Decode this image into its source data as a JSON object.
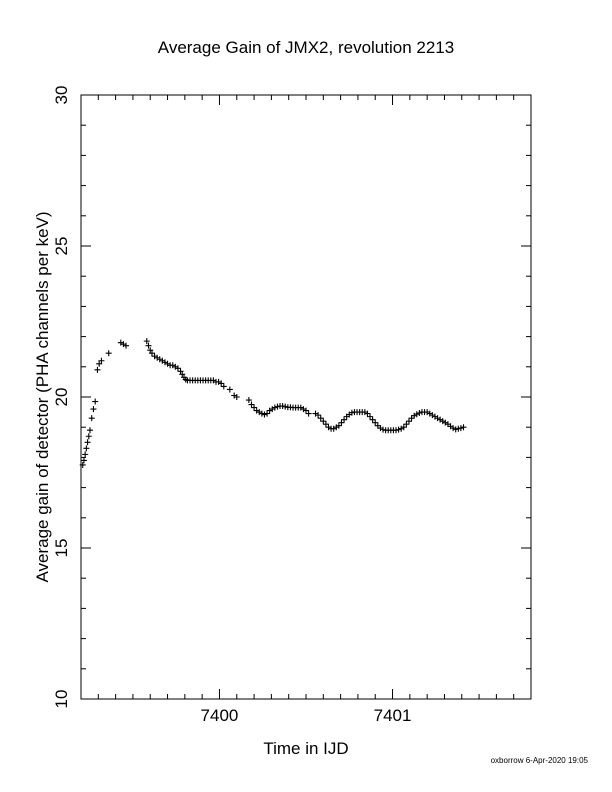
{
  "chart_data": {
    "type": "scatter",
    "title": "Average Gain of JMX2, revolution 2213",
    "xlabel": "Time in IJD",
    "ylabel": "Average gain of detector (PHA channels per keV)",
    "xlim": [
      7399.2,
      7401.8
    ],
    "ylim": [
      10,
      30
    ],
    "xticks": [
      7400,
      7401
    ],
    "yticks": [
      10,
      15,
      20,
      25,
      30
    ],
    "marker": "plus",
    "grid": false,
    "points": [
      [
        7399.21,
        17.75
      ],
      [
        7399.217,
        17.9
      ],
      [
        7399.224,
        18.1
      ],
      [
        7399.231,
        18.3
      ],
      [
        7399.238,
        18.5
      ],
      [
        7399.245,
        18.7
      ],
      [
        7399.252,
        18.9
      ],
      [
        7399.262,
        19.3
      ],
      [
        7399.272,
        19.6
      ],
      [
        7399.282,
        19.85
      ],
      [
        7399.295,
        20.9
      ],
      [
        7399.305,
        21.1
      ],
      [
        7399.318,
        21.2
      ],
      [
        7399.36,
        21.45
      ],
      [
        7399.43,
        21.8
      ],
      [
        7399.445,
        21.75
      ],
      [
        7399.46,
        21.7
      ],
      [
        7399.58,
        21.85
      ],
      [
        7399.59,
        21.7
      ],
      [
        7399.6,
        21.55
      ],
      [
        7399.61,
        21.45
      ],
      [
        7399.625,
        21.35
      ],
      [
        7399.64,
        21.3
      ],
      [
        7399.655,
        21.25
      ],
      [
        7399.67,
        21.2
      ],
      [
        7399.685,
        21.15
      ],
      [
        7399.7,
        21.1
      ],
      [
        7399.715,
        21.05
      ],
      [
        7399.73,
        21.05
      ],
      [
        7399.745,
        21.0
      ],
      [
        7399.76,
        20.95
      ],
      [
        7399.775,
        20.85
      ],
      [
        7399.785,
        20.75
      ],
      [
        7399.795,
        20.65
      ],
      [
        7399.805,
        20.58
      ],
      [
        7399.815,
        20.55
      ],
      [
        7399.83,
        20.55
      ],
      [
        7399.845,
        20.55
      ],
      [
        7399.86,
        20.55
      ],
      [
        7399.875,
        20.55
      ],
      [
        7399.89,
        20.55
      ],
      [
        7399.905,
        20.55
      ],
      [
        7399.92,
        20.55
      ],
      [
        7399.935,
        20.55
      ],
      [
        7399.95,
        20.55
      ],
      [
        7399.965,
        20.55
      ],
      [
        7399.98,
        20.5
      ],
      [
        7399.995,
        20.5
      ],
      [
        7400.01,
        20.45
      ],
      [
        7400.025,
        20.35
      ],
      [
        7400.06,
        20.25
      ],
      [
        7400.085,
        20.05
      ],
      [
        7400.1,
        20.0
      ],
      [
        7400.17,
        19.9
      ],
      [
        7400.185,
        19.75
      ],
      [
        7400.2,
        19.65
      ],
      [
        7400.215,
        19.55
      ],
      [
        7400.23,
        19.5
      ],
      [
        7400.245,
        19.45
      ],
      [
        7400.26,
        19.42
      ],
      [
        7400.275,
        19.45
      ],
      [
        7400.29,
        19.55
      ],
      [
        7400.305,
        19.6
      ],
      [
        7400.32,
        19.65
      ],
      [
        7400.335,
        19.68
      ],
      [
        7400.35,
        19.7
      ],
      [
        7400.365,
        19.7
      ],
      [
        7400.38,
        19.68
      ],
      [
        7400.395,
        19.66
      ],
      [
        7400.41,
        19.66
      ],
      [
        7400.425,
        19.65
      ],
      [
        7400.44,
        19.65
      ],
      [
        7400.455,
        19.65
      ],
      [
        7400.47,
        19.65
      ],
      [
        7400.485,
        19.6
      ],
      [
        7400.5,
        19.55
      ],
      [
        7400.515,
        19.45
      ],
      [
        7400.555,
        19.45
      ],
      [
        7400.57,
        19.4
      ],
      [
        7400.585,
        19.3
      ],
      [
        7400.6,
        19.2
      ],
      [
        7400.615,
        19.1
      ],
      [
        7400.63,
        19.0
      ],
      [
        7400.645,
        18.95
      ],
      [
        7400.66,
        18.95
      ],
      [
        7400.675,
        19.0
      ],
      [
        7400.69,
        19.05
      ],
      [
        7400.705,
        19.15
      ],
      [
        7400.72,
        19.25
      ],
      [
        7400.735,
        19.35
      ],
      [
        7400.75,
        19.42
      ],
      [
        7400.765,
        19.48
      ],
      [
        7400.78,
        19.5
      ],
      [
        7400.795,
        19.5
      ],
      [
        7400.81,
        19.5
      ],
      [
        7400.825,
        19.5
      ],
      [
        7400.84,
        19.5
      ],
      [
        7400.855,
        19.45
      ],
      [
        7400.87,
        19.35
      ],
      [
        7400.885,
        19.25
      ],
      [
        7400.9,
        19.15
      ],
      [
        7400.915,
        19.05
      ],
      [
        7400.93,
        18.97
      ],
      [
        7400.945,
        18.92
      ],
      [
        7400.96,
        18.9
      ],
      [
        7400.975,
        18.9
      ],
      [
        7400.99,
        18.9
      ],
      [
        7401.005,
        18.9
      ],
      [
        7401.02,
        18.9
      ],
      [
        7401.035,
        18.92
      ],
      [
        7401.05,
        18.95
      ],
      [
        7401.065,
        19.0
      ],
      [
        7401.08,
        19.1
      ],
      [
        7401.095,
        19.2
      ],
      [
        7401.11,
        19.3
      ],
      [
        7401.125,
        19.38
      ],
      [
        7401.14,
        19.43
      ],
      [
        7401.155,
        19.47
      ],
      [
        7401.17,
        19.5
      ],
      [
        7401.185,
        19.5
      ],
      [
        7401.2,
        19.5
      ],
      [
        7401.215,
        19.45
      ],
      [
        7401.23,
        19.4
      ],
      [
        7401.245,
        19.35
      ],
      [
        7401.26,
        19.3
      ],
      [
        7401.275,
        19.25
      ],
      [
        7401.29,
        19.2
      ],
      [
        7401.305,
        19.15
      ],
      [
        7401.32,
        19.1
      ],
      [
        7401.335,
        19.03
      ],
      [
        7401.35,
        18.97
      ],
      [
        7401.365,
        18.93
      ],
      [
        7401.38,
        18.95
      ],
      [
        7401.395,
        18.97
      ],
      [
        7401.41,
        19.0
      ]
    ]
  },
  "footer": {
    "credit": "oxborrow  6-Apr-2020 19:05"
  }
}
